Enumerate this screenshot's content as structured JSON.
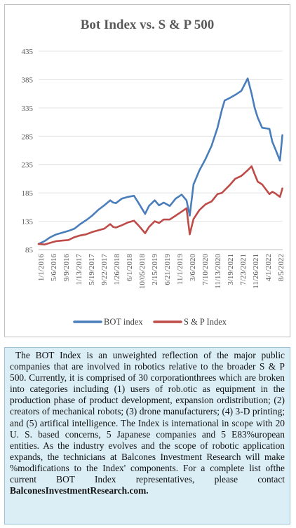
{
  "chart_data": {
    "type": "line",
    "title": "Bot Index vs. S & P 500",
    "xlabel": "",
    "ylabel": "",
    "ylim": [
      85,
      435
    ],
    "y_ticks": [
      85,
      135,
      185,
      235,
      285,
      335,
      385,
      435
    ],
    "x_tick_labels": [
      "1/1/2016",
      "5/6/2016",
      "9/9/2016",
      "1/13/2017",
      "5/19/2017",
      "9/22/2017",
      "1/26/2018",
      "6/1/2018",
      "10/05/2018",
      "2/15/2019",
      "6/21/2019",
      "11/1/2019",
      "3/6/2020",
      "7/10/2020",
      "11/13/2020",
      "3/19/2021",
      "7/23/2021",
      "11/26/2021",
      "4/1/2022",
      "8/5/2022"
    ],
    "grid": "horizontal",
    "legend_position": "bottom",
    "x": [
      "2016-01-01",
      "2016-03-01",
      "2016-05-01",
      "2016-07-01",
      "2016-09-01",
      "2016-11-01",
      "2017-01-01",
      "2017-03-01",
      "2017-05-01",
      "2017-07-01",
      "2017-09-01",
      "2017-11-01",
      "2018-01-01",
      "2018-02-01",
      "2018-03-01",
      "2018-05-01",
      "2018-07-01",
      "2018-09-01",
      "2018-10-15",
      "2018-12-24",
      "2019-02-01",
      "2019-04-01",
      "2019-05-15",
      "2019-07-01",
      "2019-09-01",
      "2019-11-01",
      "2020-01-01",
      "2020-02-19",
      "2020-03-23",
      "2020-05-01",
      "2020-07-01",
      "2020-09-01",
      "2020-11-01",
      "2021-01-01",
      "2021-02-15",
      "2021-03-15",
      "2021-05-01",
      "2021-07-01",
      "2021-09-01",
      "2021-11-05",
      "2021-12-15",
      "2022-01-15",
      "2022-02-15",
      "2022-04-01",
      "2022-06-15",
      "2022-07-15",
      "2022-08-15",
      "2022-09-30",
      "2022-10-25"
    ],
    "series": [
      {
        "name": "BOT index",
        "color": "#4a7ebb",
        "values": [
          95,
          100,
          107,
          112,
          115,
          118,
          122,
          130,
          137,
          145,
          155,
          163,
          172,
          168,
          167,
          175,
          178,
          180,
          168,
          148,
          162,
          172,
          163,
          168,
          162,
          175,
          182,
          172,
          145,
          200,
          225,
          245,
          268,
          300,
          332,
          348,
          352,
          358,
          365,
          387,
          360,
          335,
          318,
          300,
          298,
          275,
          262,
          242,
          287
        ]
      },
      {
        "name": "S & P Index",
        "color": "#be4b48",
        "values": [
          95,
          94,
          97,
          100,
          101,
          102,
          107,
          110,
          112,
          116,
          119,
          122,
          130,
          125,
          124,
          128,
          133,
          136,
          128,
          114,
          125,
          135,
          132,
          138,
          138,
          145,
          152,
          158,
          112,
          139,
          155,
          165,
          170,
          183,
          185,
          190,
          198,
          210,
          215,
          225,
          232,
          218,
          205,
          200,
          183,
          187,
          184,
          178,
          193
        ]
      }
    ]
  },
  "caption": {
    "text": "The BOT Index is an unweighted reflection of the major public companies that are involved in robotics relative to the broader S & P 500. Currently, it is comprised of 30 corporationthrees which are broken into categories including (1) users of rob.otic as equipment in the production phase of product development, expansion ordistribution; (2) creators of mechanical robots; (3) drone manufacturers; (4) 3-D printing; and (5) artifical intelligence. The Index is international in scope with 20 U. S. based concerns, 5 Japanese companies and 5 E83%uropean entities. As the industry evolves and the scope of robotic application expands, the technicians at Balcones Investment Research will make %modifications to the Index' components. For a  complete list ofthe current BOT Index representatives, please contact",
    "link_text": "BalconesInvestmentResearch.com."
  }
}
